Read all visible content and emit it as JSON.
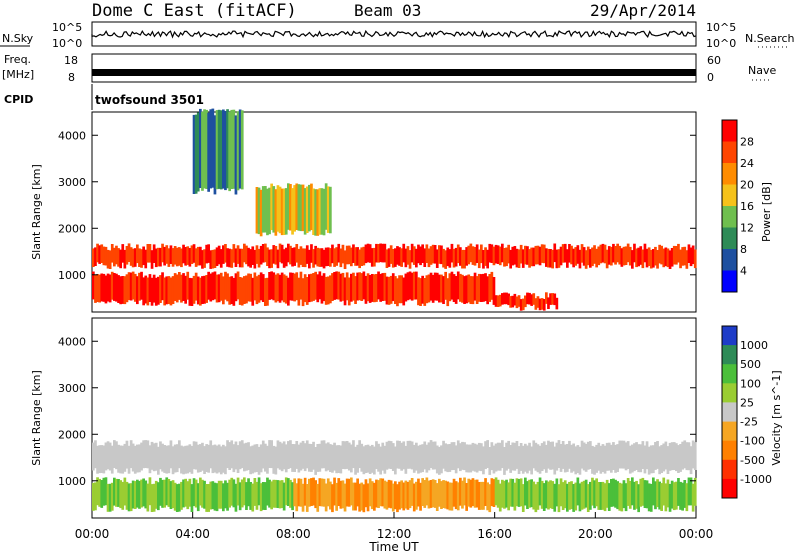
{
  "header": {
    "title": "Dome C East (fitACF)",
    "beam": "Beam 03",
    "date": "29/Apr/2014"
  },
  "status_panels": {
    "nsky_label": "N.Sky",
    "nsearch_label": "N.Search",
    "nsky_ticks": [
      "10^5",
      "10^0"
    ],
    "nsearch_ticks": [
      "10^5",
      "10^0"
    ],
    "freq_label": "Freq.",
    "freq_unit": "[MHz]",
    "freq_ticks": [
      "18",
      "8"
    ],
    "nave_label": "Nave",
    "nave_ticks": [
      "60",
      "0"
    ],
    "cpid_label": "CPID",
    "cpid_value": "twofsound 3501"
  },
  "chart_data": [
    {
      "type": "heatmap",
      "name": "power",
      "ylabel": "Slant Range [km]",
      "ylim": [
        200,
        4500
      ],
      "yticks": [
        1000,
        2000,
        3000,
        4000
      ],
      "colorbar_label": "Power [dB]",
      "colorbar_ticks": [
        4,
        8,
        12,
        16,
        20,
        24,
        28
      ],
      "colorbar_colors": [
        "#0000ff",
        "#1e50a0",
        "#2e8b57",
        "#6fbf4f",
        "#f5c21b",
        "#ff8c00",
        "#ff4500",
        "#ff0000"
      ],
      "echo_bands": [
        {
          "t_start": 0.0,
          "t_end": 24.0,
          "range_min": 1200,
          "range_max": 1600,
          "level": "high"
        },
        {
          "t_start": 0.0,
          "t_end": 16.0,
          "range_min": 400,
          "range_max": 1000,
          "level": "high"
        },
        {
          "t_start": 16.0,
          "t_end": 18.5,
          "range_min": 300,
          "range_max": 550,
          "level": "high"
        },
        {
          "t_start": 4.0,
          "t_end": 6.0,
          "range_min": 2800,
          "range_max": 4500,
          "level": "low"
        },
        {
          "t_start": 6.5,
          "t_end": 9.5,
          "range_min": 1900,
          "range_max": 2900,
          "level": "mid"
        }
      ]
    },
    {
      "type": "heatmap",
      "name": "velocity",
      "ylabel": "Slant Range [km]",
      "ylim": [
        200,
        4500
      ],
      "yticks": [
        1000,
        2000,
        3000,
        4000
      ],
      "xlabel": "Time UT",
      "xticks": [
        "00:00",
        "04:00",
        "08:00",
        "12:00",
        "16:00",
        "20:00",
        "00:00"
      ],
      "xlim": [
        0,
        24
      ],
      "colorbar_label": "Velocity [m s^-1]",
      "colorbar_ticks": [
        "1000",
        "500",
        "100",
        "25",
        "-25",
        "-100",
        "-500",
        "-1000"
      ],
      "colorbar_colors": [
        "#1e3cc8",
        "#2e8b57",
        "#4bbf3a",
        "#9acd32",
        "#c8c8c8",
        "#f5a623",
        "#ff8000",
        "#ff3000",
        "#ff0000"
      ],
      "echo_bands": [
        {
          "t_start": 0.0,
          "t_end": 24.0,
          "range_min": 1200,
          "range_max": 1800,
          "level": "ground"
        },
        {
          "t_start": 0.0,
          "t_end": 8.0,
          "range_min": 400,
          "range_max": 1000,
          "level": "positive"
        },
        {
          "t_start": 8.0,
          "t_end": 16.0,
          "range_min": 400,
          "range_max": 1000,
          "level": "negative"
        },
        {
          "t_start": 16.0,
          "t_end": 24.0,
          "range_min": 400,
          "range_max": 1000,
          "level": "positive"
        }
      ]
    }
  ]
}
